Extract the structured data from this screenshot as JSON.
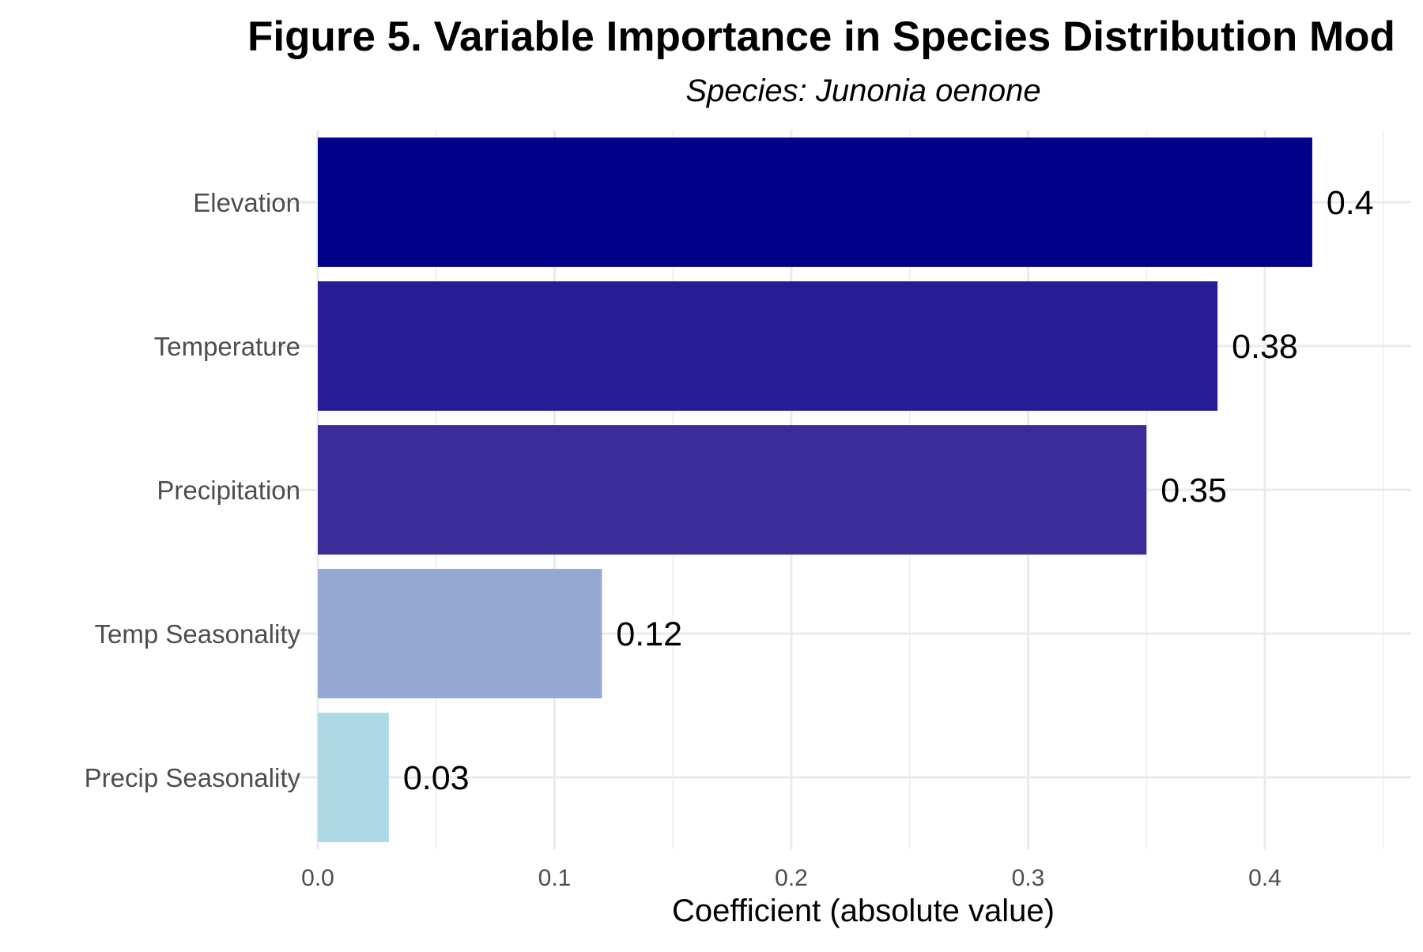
{
  "chart_data": {
    "type": "bar",
    "orientation": "horizontal",
    "title": "Figure 5. Variable Importance in Species Distribution Mod",
    "subtitle": "Species: Junonia oenone",
    "xlabel": "Coefficient (absolute value)",
    "ylabel": "",
    "xlim": [
      0,
      0.42
    ],
    "x_ticks": [
      "0.0",
      "0.1",
      "0.2",
      "0.3",
      "0.4"
    ],
    "grid": true,
    "legend": "none",
    "categories": [
      "Elevation",
      "Temperature",
      "Precipitation",
      "Temp Seasonality",
      "Precip Seasonality"
    ],
    "values": [
      0.42,
      0.38,
      0.35,
      0.12,
      0.03
    ],
    "data_labels": [
      "0.4",
      "0.38",
      "0.35",
      "0.12",
      "0.03"
    ],
    "colors": [
      "#00008b",
      "#281c95",
      "#3a2d9a",
      "#94a8d2",
      "#add8e6"
    ]
  }
}
